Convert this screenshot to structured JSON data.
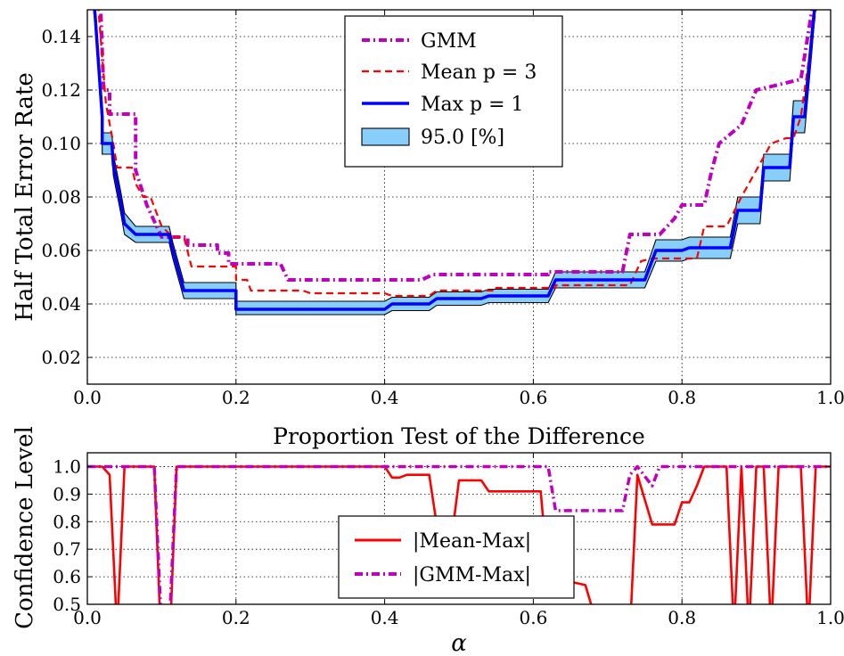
{
  "chart_data": [
    {
      "type": "line",
      "title": "",
      "xlabel": "",
      "ylabel": "Half Total Error Rate",
      "xlim": [
        0.0,
        1.0
      ],
      "ylim": [
        0.01,
        0.15
      ],
      "xticks": [
        "0.0",
        "0.2",
        "0.4",
        "0.6",
        "0.8",
        "1.0"
      ],
      "yticks": [
        "0.02",
        "0.04",
        "0.06",
        "0.08",
        "0.10",
        "0.12",
        "0.14"
      ],
      "grid": true,
      "legend_position": "top-center",
      "colors": {
        "gmm": "#bf00bf",
        "mean": "#ff0000",
        "max": "#0000ff",
        "band_fill": "#87cefa"
      },
      "series": [
        {
          "name": "GMM",
          "style": "dash-dot",
          "points": [
            [
              0.0,
              0.16
            ],
            [
              0.018,
              0.15
            ],
            [
              0.022,
              0.12
            ],
            [
              0.03,
              0.12
            ],
            [
              0.03,
              0.111
            ],
            [
              0.065,
              0.111
            ],
            [
              0.065,
              0.09
            ],
            [
              0.08,
              0.077
            ],
            [
              0.1,
              0.065
            ],
            [
              0.135,
              0.065
            ],
            [
              0.135,
              0.062
            ],
            [
              0.175,
              0.062
            ],
            [
              0.175,
              0.059
            ],
            [
              0.19,
              0.059
            ],
            [
              0.19,
              0.055
            ],
            [
              0.26,
              0.055
            ],
            [
              0.27,
              0.049
            ],
            [
              0.4,
              0.049
            ],
            [
              0.45,
              0.049
            ],
            [
              0.465,
              0.051
            ],
            [
              0.62,
              0.051
            ],
            [
              0.62,
              0.052
            ],
            [
              0.72,
              0.052
            ],
            [
              0.73,
              0.066
            ],
            [
              0.77,
              0.066
            ],
            [
              0.79,
              0.072
            ],
            [
              0.8,
              0.077
            ],
            [
              0.83,
              0.077
            ],
            [
              0.84,
              0.09
            ],
            [
              0.85,
              0.1
            ],
            [
              0.88,
              0.107
            ],
            [
              0.9,
              0.12
            ],
            [
              0.96,
              0.124
            ],
            [
              0.975,
              0.15
            ],
            [
              0.99,
              0.16
            ]
          ]
        },
        {
          "name": "Mean p = 3",
          "style": "dashed",
          "points": [
            [
              0.0,
              0.16
            ],
            [
              0.015,
              0.15
            ],
            [
              0.025,
              0.115
            ],
            [
              0.035,
              0.1
            ],
            [
              0.04,
              0.091
            ],
            [
              0.06,
              0.091
            ],
            [
              0.065,
              0.085
            ],
            [
              0.075,
              0.08
            ],
            [
              0.085,
              0.08
            ],
            [
              0.1,
              0.069
            ],
            [
              0.115,
              0.065
            ],
            [
              0.13,
              0.065
            ],
            [
              0.14,
              0.054
            ],
            [
              0.2,
              0.054
            ],
            [
              0.2,
              0.049
            ],
            [
              0.215,
              0.049
            ],
            [
              0.22,
              0.045
            ],
            [
              0.29,
              0.045
            ],
            [
              0.3,
              0.044
            ],
            [
              0.4,
              0.044
            ],
            [
              0.41,
              0.043
            ],
            [
              0.46,
              0.043
            ],
            [
              0.47,
              0.045
            ],
            [
              0.55,
              0.045
            ],
            [
              0.55,
              0.046
            ],
            [
              0.63,
              0.046
            ],
            [
              0.63,
              0.047
            ],
            [
              0.73,
              0.047
            ],
            [
              0.745,
              0.056
            ],
            [
              0.76,
              0.057
            ],
            [
              0.82,
              0.057
            ],
            [
              0.83,
              0.069
            ],
            [
              0.86,
              0.069
            ],
            [
              0.88,
              0.08
            ],
            [
              0.9,
              0.09
            ],
            [
              0.92,
              0.1
            ],
            [
              0.94,
              0.102
            ],
            [
              0.95,
              0.102
            ],
            [
              0.96,
              0.11
            ],
            [
              0.975,
              0.14
            ],
            [
              0.985,
              0.16
            ]
          ]
        },
        {
          "name": "Max p = 1",
          "style": "solid",
          "points": [
            [
              0.0,
              0.17
            ],
            [
              0.01,
              0.15
            ],
            [
              0.02,
              0.11
            ],
            [
              0.02,
              0.1
            ],
            [
              0.033,
              0.1
            ],
            [
              0.035,
              0.092
            ],
            [
              0.045,
              0.078
            ],
            [
              0.05,
              0.07
            ],
            [
              0.065,
              0.066
            ],
            [
              0.11,
              0.066
            ],
            [
              0.115,
              0.06
            ],
            [
              0.13,
              0.045
            ],
            [
              0.2,
              0.045
            ],
            [
              0.2,
              0.038
            ],
            [
              0.4,
              0.038
            ],
            [
              0.41,
              0.04
            ],
            [
              0.46,
              0.04
            ],
            [
              0.47,
              0.042
            ],
            [
              0.53,
              0.042
            ],
            [
              0.54,
              0.043
            ],
            [
              0.62,
              0.043
            ],
            [
              0.63,
              0.049
            ],
            [
              0.75,
              0.049
            ],
            [
              0.765,
              0.06
            ],
            [
              0.8,
              0.06
            ],
            [
              0.81,
              0.061
            ],
            [
              0.865,
              0.061
            ],
            [
              0.875,
              0.075
            ],
            [
              0.905,
              0.075
            ],
            [
              0.91,
              0.091
            ],
            [
              0.945,
              0.091
            ],
            [
              0.95,
              0.11
            ],
            [
              0.965,
              0.11
            ],
            [
              0.975,
              0.14
            ],
            [
              0.985,
              0.17
            ]
          ]
        }
      ],
      "band": {
        "name": "95.0 [%]",
        "points": [
          [
            0.0,
            0.17,
            0.17
          ],
          [
            0.01,
            0.146,
            0.154
          ],
          [
            0.02,
            0.105,
            0.115
          ],
          [
            0.02,
            0.096,
            0.104
          ],
          [
            0.033,
            0.096,
            0.104
          ],
          [
            0.035,
            0.088,
            0.096
          ],
          [
            0.045,
            0.074,
            0.082
          ],
          [
            0.05,
            0.066,
            0.074
          ],
          [
            0.065,
            0.063,
            0.069
          ],
          [
            0.11,
            0.063,
            0.069
          ],
          [
            0.115,
            0.057,
            0.063
          ],
          [
            0.13,
            0.042,
            0.048
          ],
          [
            0.2,
            0.042,
            0.048
          ],
          [
            0.2,
            0.036,
            0.041
          ],
          [
            0.4,
            0.036,
            0.041
          ],
          [
            0.41,
            0.0375,
            0.0425
          ],
          [
            0.46,
            0.0375,
            0.0425
          ],
          [
            0.47,
            0.0395,
            0.0445
          ],
          [
            0.53,
            0.0395,
            0.0445
          ],
          [
            0.54,
            0.0405,
            0.0455
          ],
          [
            0.62,
            0.0405,
            0.0455
          ],
          [
            0.63,
            0.046,
            0.052
          ],
          [
            0.75,
            0.046,
            0.052
          ],
          [
            0.765,
            0.056,
            0.064
          ],
          [
            0.8,
            0.056,
            0.064
          ],
          [
            0.81,
            0.057,
            0.065
          ],
          [
            0.865,
            0.057,
            0.065
          ],
          [
            0.875,
            0.07,
            0.08
          ],
          [
            0.905,
            0.07,
            0.08
          ],
          [
            0.91,
            0.086,
            0.096
          ],
          [
            0.945,
            0.086,
            0.096
          ],
          [
            0.95,
            0.104,
            0.116
          ],
          [
            0.965,
            0.104,
            0.116
          ],
          [
            0.975,
            0.135,
            0.145
          ],
          [
            0.985,
            0.17,
            0.17
          ]
        ]
      }
    },
    {
      "type": "line",
      "title": "Proportion Test of the Difference",
      "xlabel": "α",
      "ylabel": "Confidence Level",
      "xlim": [
        0.0,
        1.0
      ],
      "ylim": [
        0.5,
        1.05
      ],
      "xticks": [
        "0.0",
        "0.2",
        "0.4",
        "0.6",
        "0.8",
        "1.0"
      ],
      "yticks": [
        "0.5",
        "0.6",
        "0.7",
        "0.8",
        "0.9",
        "1.0"
      ],
      "grid": true,
      "legend_position": "bottom-center",
      "colors": {
        "mean_max": "#ff0000",
        "gmm_max": "#bf00bf"
      },
      "series": [
        {
          "name": "|Mean-Max|",
          "style": "solid",
          "points": [
            [
              0.0,
              1.0
            ],
            [
              0.02,
              1.0
            ],
            [
              0.03,
              0.97
            ],
            [
              0.04,
              0.4
            ],
            [
              0.05,
              1.0
            ],
            [
              0.09,
              1.0
            ],
            [
              0.1,
              0.3
            ],
            [
              0.11,
              0.3
            ],
            [
              0.12,
              1.0
            ],
            [
              0.4,
              1.0
            ],
            [
              0.41,
              0.96
            ],
            [
              0.42,
              0.96
            ],
            [
              0.43,
              0.97
            ],
            [
              0.46,
              0.97
            ],
            [
              0.47,
              0.79
            ],
            [
              0.48,
              0.79
            ],
            [
              0.49,
              0.74
            ],
            [
              0.5,
              0.95
            ],
            [
              0.53,
              0.95
            ],
            [
              0.54,
              0.91
            ],
            [
              0.61,
              0.91
            ],
            [
              0.62,
              0.6
            ],
            [
              0.67,
              0.57
            ],
            [
              0.68,
              0.48
            ],
            [
              0.72,
              0.4
            ],
            [
              0.73,
              0.4
            ],
            [
              0.74,
              0.97
            ],
            [
              0.76,
              0.79
            ],
            [
              0.79,
              0.79
            ],
            [
              0.8,
              0.87
            ],
            [
              0.81,
              0.87
            ],
            [
              0.82,
              0.93
            ],
            [
              0.83,
              1.0
            ],
            [
              0.86,
              1.0
            ],
            [
              0.87,
              0.4
            ],
            [
              0.88,
              1.0
            ],
            [
              0.89,
              0.4
            ],
            [
              0.9,
              1.0
            ],
            [
              0.91,
              1.0
            ],
            [
              0.92,
              0.4
            ],
            [
              0.93,
              1.0
            ],
            [
              0.96,
              1.0
            ],
            [
              0.97,
              0.4
            ],
            [
              0.98,
              1.0
            ],
            [
              1.0,
              1.0
            ]
          ]
        },
        {
          "name": "|GMM-Max|",
          "style": "dash-dot",
          "points": [
            [
              0.0,
              1.0
            ],
            [
              0.09,
              1.0
            ],
            [
              0.1,
              0.4
            ],
            [
              0.11,
              0.4
            ],
            [
              0.12,
              1.0
            ],
            [
              0.62,
              1.0
            ],
            [
              0.63,
              0.84
            ],
            [
              0.72,
              0.84
            ],
            [
              0.73,
              0.97
            ],
            [
              0.74,
              1.0
            ],
            [
              0.76,
              0.93
            ],
            [
              0.77,
              1.0
            ],
            [
              1.0,
              1.0
            ]
          ]
        }
      ]
    }
  ]
}
